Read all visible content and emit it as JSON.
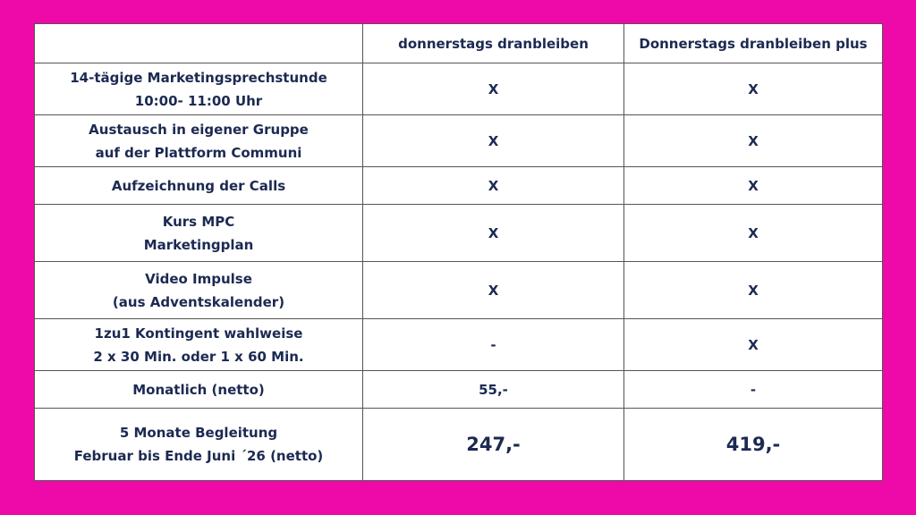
{
  "table": {
    "header": {
      "corner": "",
      "col1": "donnerstags dranbleiben",
      "col2": "Donnerstags dranbleiben plus"
    },
    "rows": [
      {
        "feature": [
          "14-tägige Marketingsprechstunde",
          "10:00- 11:00 Uhr"
        ],
        "col1": "X",
        "col2": "X"
      },
      {
        "feature": [
          "Austausch in eigener Gruppe",
          "auf der Plattform Communi"
        ],
        "col1": "X",
        "col2": "X"
      },
      {
        "feature": [
          "Aufzeichnung der Calls"
        ],
        "col1": "X",
        "col2": "X"
      },
      {
        "feature": [
          "Kurs MPC",
          "Marketingplan"
        ],
        "col1": "X",
        "col2": "X"
      },
      {
        "feature": [
          "Video Impulse",
          "(aus Adventskalender)"
        ],
        "col1": "X",
        "col2": "X"
      },
      {
        "feature": [
          "1zu1 Kontingent  wahlweise",
          "2 x 30 Min. oder 1 x 60 Min."
        ],
        "col1": "-",
        "col2": "X"
      },
      {
        "feature": [
          "Monatlich (netto)"
        ],
        "col1": "55,-",
        "col2": "-"
      },
      {
        "feature": [
          "5 Monate Begleitung",
          "Februar bis Ende Juni ´26 (netto)"
        ],
        "col1": "247,-",
        "col2": "419,-"
      }
    ]
  },
  "colors": {
    "background": "#ee0aa8",
    "text": "#1c2a52",
    "border": "#555555",
    "sheet": "#ffffff"
  }
}
